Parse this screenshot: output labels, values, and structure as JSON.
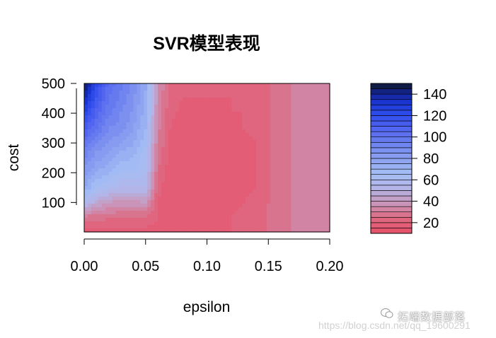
{
  "chart_data": {
    "type": "heatmap",
    "title": "SVR模型表现",
    "xlabel": "epsilon",
    "ylabel": "cost",
    "x_ticks": [
      "0.00",
      "0.05",
      "0.10",
      "0.15",
      "0.20"
    ],
    "y_ticks": [
      "100",
      "200",
      "300",
      "400",
      "500"
    ],
    "xlim": [
      0.0,
      0.2
    ],
    "ylim": [
      1,
      500
    ],
    "legend_ticks": [
      "20",
      "40",
      "60",
      "80",
      "100",
      "120",
      "140"
    ],
    "legend_range": [
      10,
      150
    ],
    "legend_placement": "right",
    "x": [
      0.0,
      0.01,
      0.02,
      0.03,
      0.04,
      0.05,
      0.06,
      0.07,
      0.08,
      0.09,
      0.1,
      0.11,
      0.12,
      0.13,
      0.14,
      0.15,
      0.16,
      0.17,
      0.18,
      0.19,
      0.2
    ],
    "y": [
      1,
      50,
      100,
      150,
      200,
      250,
      300,
      350,
      400,
      450,
      500
    ],
    "z": [
      [
        18,
        18,
        18,
        18,
        18,
        18,
        18,
        18,
        18,
        18,
        18,
        19,
        20,
        21,
        22,
        25,
        28,
        30,
        32,
        32,
        32
      ],
      [
        28,
        27,
        26,
        25,
        25,
        24,
        20,
        17,
        16,
        17,
        18,
        19,
        20,
        21,
        22,
        26,
        28,
        30,
        32,
        32,
        32
      ],
      [
        60,
        45,
        40,
        38,
        38,
        40,
        20,
        16,
        15,
        16,
        18,
        19,
        19,
        20,
        21,
        25,
        28,
        30,
        32,
        32,
        32
      ],
      [
        75,
        65,
        60,
        55,
        55,
        55,
        22,
        16,
        15,
        15,
        17,
        18,
        19,
        19,
        20,
        24,
        28,
        30,
        32,
        32,
        32
      ],
      [
        82,
        75,
        70,
        65,
        65,
        60,
        25,
        17,
        15,
        15,
        17,
        18,
        19,
        19,
        20,
        24,
        28,
        30,
        32,
        32,
        32
      ],
      [
        90,
        82,
        78,
        72,
        70,
        62,
        28,
        18,
        16,
        16,
        17,
        18,
        19,
        19,
        20,
        24,
        28,
        30,
        32,
        32,
        32
      ],
      [
        100,
        90,
        85,
        80,
        76,
        66,
        30,
        19,
        17,
        17,
        18,
        18,
        19,
        19,
        20,
        24,
        28,
        30,
        32,
        32,
        32
      ],
      [
        112,
        100,
        90,
        88,
        80,
        70,
        32,
        20,
        18,
        18,
        18,
        19,
        19,
        20,
        21,
        24,
        28,
        30,
        32,
        32,
        32
      ],
      [
        125,
        108,
        96,
        90,
        84,
        72,
        34,
        21,
        19,
        19,
        19,
        19,
        20,
        20,
        21,
        24,
        28,
        30,
        32,
        32,
        32
      ],
      [
        138,
        115,
        100,
        94,
        86,
        74,
        35,
        22,
        20,
        20,
        20,
        20,
        20,
        21,
        22,
        24,
        28,
        30,
        32,
        32,
        32
      ],
      [
        150,
        122,
        104,
        96,
        88,
        76,
        36,
        23,
        21,
        21,
        21,
        21,
        21,
        21,
        22,
        24,
        28,
        30,
        32,
        32,
        32
      ]
    ]
  },
  "watermark": {
    "brand": "拓端数据部落",
    "url": "https://blog.csdn.net/qq_19600291"
  }
}
